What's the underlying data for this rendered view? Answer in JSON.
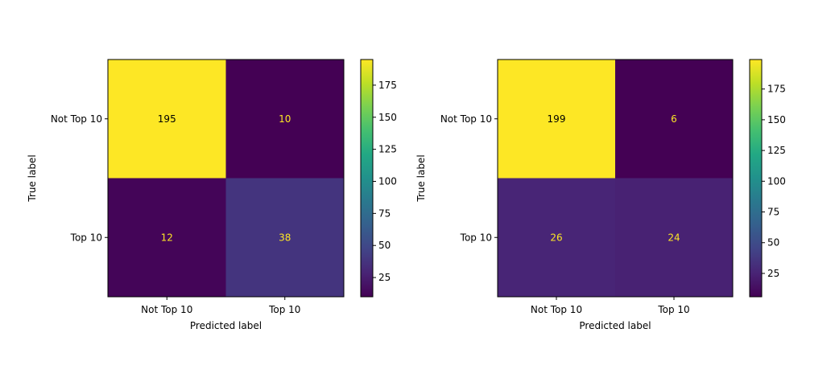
{
  "chart_data": [
    {
      "type": "heatmap",
      "title": "",
      "xlabel": "Predicted label",
      "ylabel": "True label",
      "x_categories": [
        "Not Top 10",
        "Top 10"
      ],
      "y_categories": [
        "Not Top 10",
        "Top 10"
      ],
      "values": [
        [
          195,
          10
        ],
        [
          12,
          38
        ]
      ],
      "colorbar": {
        "colormap": "viridis",
        "range": [
          10,
          195
        ],
        "ticks": [
          25,
          50,
          75,
          100,
          125,
          150,
          175
        ]
      }
    },
    {
      "type": "heatmap",
      "title": "",
      "xlabel": "Predicted label",
      "ylabel": "True label",
      "x_categories": [
        "Not Top 10",
        "Top 10"
      ],
      "y_categories": [
        "Not Top 10",
        "Top 10"
      ],
      "values": [
        [
          199,
          6
        ],
        [
          26,
          24
        ]
      ],
      "colorbar": {
        "colormap": "viridis",
        "range": [
          6,
          199
        ],
        "ticks": [
          25,
          50,
          75,
          100,
          125,
          150,
          175
        ]
      }
    }
  ],
  "colors": {
    "high_text": "#000000",
    "low_text": "#fde725",
    "axis": "#000000"
  }
}
